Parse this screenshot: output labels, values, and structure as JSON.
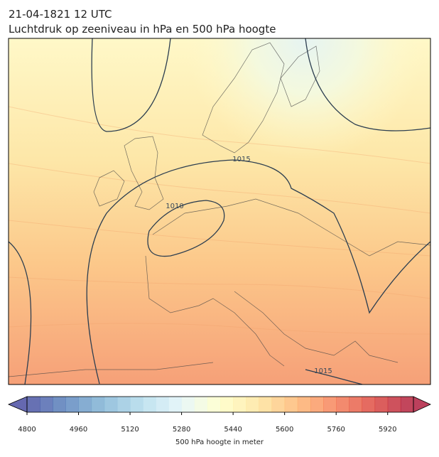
{
  "title": [
    "21-04-1821 12 UTC",
    "Luchtdruk op zeeniveau in hPa en 500 hPa hoogte"
  ],
  "contour_labels": [
    "1015",
    "1010",
    "1015"
  ],
  "colorbar": {
    "label": "500 hPa hoogte in meter",
    "lim": [
      4800,
      6000
    ],
    "ticks": [
      4800,
      4960,
      5120,
      5280,
      5440,
      5600,
      5760,
      5920
    ],
    "colormap": [
      "#313695",
      "#4575b4",
      "#74add1",
      "#abd9e9",
      "#e0f3f8",
      "#ffffbf",
      "#fee090",
      "#fdae61",
      "#f46d43",
      "#d73027",
      "#a50026"
    ],
    "swatches": 30
  }
}
